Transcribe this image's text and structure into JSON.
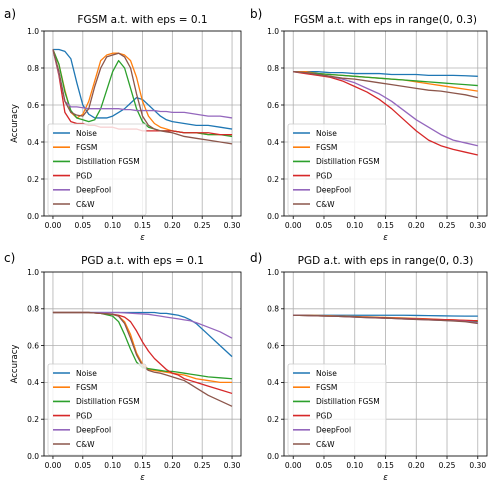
{
  "colors": {
    "Noise": "#1f77b4",
    "FGSM": "#ff7f0e",
    "Distillation FGSM": "#2ca02c",
    "PGD": "#d62728",
    "DeepFool": "#9467bd",
    "C&W": "#8c564b",
    "grid": "#b0b0b0"
  },
  "chart_data": [
    {
      "panel": "a)",
      "type": "line",
      "title": "FGSM a.t. with eps = 0.1",
      "xlabel": "ε",
      "ylabel": "Accuracy",
      "xlim": [
        -0.015,
        0.315
      ],
      "ylim": [
        0.0,
        1.0
      ],
      "xticks": [
        "0.00",
        "0.05",
        "0.10",
        "0.15",
        "0.20",
        "0.25",
        "0.30"
      ],
      "yticks": [
        "0.0",
        "0.2",
        "0.4",
        "0.6",
        "0.8",
        "1.0"
      ],
      "grid": true,
      "legend_position": "lower left",
      "x": [
        0.0,
        0.01,
        0.02,
        0.03,
        0.04,
        0.05,
        0.06,
        0.07,
        0.08,
        0.09,
        0.1,
        0.11,
        0.12,
        0.13,
        0.14,
        0.15,
        0.16,
        0.17,
        0.18,
        0.19,
        0.2,
        0.22,
        0.24,
        0.26,
        0.28,
        0.3
      ],
      "series": [
        {
          "name": "Noise",
          "values": [
            0.9,
            0.9,
            0.89,
            0.85,
            0.72,
            0.6,
            0.55,
            0.53,
            0.53,
            0.53,
            0.54,
            0.56,
            0.58,
            0.61,
            0.64,
            0.63,
            0.6,
            0.57,
            0.54,
            0.52,
            0.51,
            0.5,
            0.49,
            0.49,
            0.48,
            0.47
          ]
        },
        {
          "name": "FGSM",
          "values": [
            0.9,
            0.82,
            0.68,
            0.56,
            0.53,
            0.55,
            0.62,
            0.73,
            0.84,
            0.87,
            0.88,
            0.88,
            0.87,
            0.84,
            0.75,
            0.62,
            0.54,
            0.5,
            0.48,
            0.47,
            0.46,
            0.45,
            0.45,
            0.44,
            0.44,
            0.44
          ]
        },
        {
          "name": "Distillation FGSM",
          "values": [
            0.9,
            0.82,
            0.67,
            0.57,
            0.53,
            0.52,
            0.51,
            0.52,
            0.58,
            0.68,
            0.78,
            0.84,
            0.8,
            0.69,
            0.58,
            0.51,
            0.48,
            0.47,
            0.46,
            0.46,
            0.46,
            0.45,
            0.45,
            0.44,
            0.44,
            0.43
          ]
        },
        {
          "name": "PGD",
          "values": [
            0.9,
            0.76,
            0.56,
            0.51,
            0.5,
            0.5,
            0.49,
            0.49,
            0.48,
            0.48,
            0.48,
            0.47,
            0.47,
            0.47,
            0.47,
            0.46,
            0.46,
            0.46,
            0.46,
            0.46,
            0.46,
            0.45,
            0.45,
            0.45,
            0.44,
            0.44
          ]
        },
        {
          "name": "DeepFool",
          "values": [
            0.9,
            0.77,
            0.62,
            0.59,
            0.59,
            0.585,
            0.58,
            0.58,
            0.58,
            0.58,
            0.58,
            0.58,
            0.575,
            0.575,
            0.57,
            0.57,
            0.57,
            0.57,
            0.565,
            0.565,
            0.56,
            0.56,
            0.55,
            0.54,
            0.54,
            0.53
          ]
        },
        {
          "name": "C&W",
          "values": [
            0.9,
            0.78,
            0.62,
            0.56,
            0.545,
            0.54,
            0.58,
            0.7,
            0.8,
            0.86,
            0.87,
            0.88,
            0.86,
            0.8,
            0.66,
            0.54,
            0.49,
            0.47,
            0.46,
            0.455,
            0.45,
            0.43,
            0.42,
            0.41,
            0.4,
            0.39
          ]
        }
      ]
    },
    {
      "panel": "b)",
      "type": "line",
      "title": "FGSM a.t. with eps in range(0, 0.3)",
      "xlabel": "ε",
      "ylabel": "",
      "xlim": [
        -0.015,
        0.315
      ],
      "ylim": [
        0.0,
        1.0
      ],
      "xticks": [
        "0.00",
        "0.05",
        "0.10",
        "0.15",
        "0.20",
        "0.25",
        "0.30"
      ],
      "yticks": [
        "0.0",
        "0.2",
        "0.4",
        "0.6",
        "0.8",
        "1.0"
      ],
      "grid": true,
      "legend_position": "lower left",
      "x": [
        0.0,
        0.02,
        0.04,
        0.06,
        0.08,
        0.1,
        0.12,
        0.14,
        0.16,
        0.18,
        0.2,
        0.22,
        0.24,
        0.26,
        0.28,
        0.3
      ],
      "series": [
        {
          "name": "Noise",
          "values": [
            0.78,
            0.78,
            0.78,
            0.775,
            0.775,
            0.77,
            0.77,
            0.77,
            0.765,
            0.765,
            0.765,
            0.76,
            0.76,
            0.76,
            0.758,
            0.755
          ]
        },
        {
          "name": "FGSM",
          "values": [
            0.78,
            0.78,
            0.77,
            0.765,
            0.76,
            0.755,
            0.75,
            0.745,
            0.74,
            0.735,
            0.725,
            0.715,
            0.705,
            0.695,
            0.685,
            0.675
          ]
        },
        {
          "name": "Distillation FGSM",
          "values": [
            0.78,
            0.775,
            0.77,
            0.765,
            0.76,
            0.755,
            0.75,
            0.745,
            0.74,
            0.735,
            0.73,
            0.725,
            0.72,
            0.715,
            0.71,
            0.705
          ]
        },
        {
          "name": "PGD",
          "values": [
            0.78,
            0.77,
            0.76,
            0.75,
            0.73,
            0.7,
            0.67,
            0.63,
            0.58,
            0.52,
            0.46,
            0.41,
            0.38,
            0.36,
            0.345,
            0.33
          ]
        },
        {
          "name": "DeepFool",
          "values": [
            0.78,
            0.775,
            0.765,
            0.755,
            0.74,
            0.72,
            0.69,
            0.66,
            0.62,
            0.57,
            0.52,
            0.48,
            0.44,
            0.41,
            0.395,
            0.38
          ]
        },
        {
          "name": "C&W",
          "values": [
            0.78,
            0.775,
            0.765,
            0.755,
            0.745,
            0.74,
            0.73,
            0.72,
            0.71,
            0.7,
            0.69,
            0.68,
            0.675,
            0.665,
            0.655,
            0.64
          ]
        }
      ]
    },
    {
      "panel": "c)",
      "type": "line",
      "title": "PGD a.t. with eps = 0.1",
      "xlabel": "ε",
      "ylabel": "Accuracy",
      "xlim": [
        -0.015,
        0.315
      ],
      "ylim": [
        0.0,
        1.0
      ],
      "xticks": [
        "0.00",
        "0.05",
        "0.10",
        "0.15",
        "0.20",
        "0.25",
        "0.30"
      ],
      "yticks": [
        "0.0",
        "0.2",
        "0.4",
        "0.6",
        "0.8",
        "1.0"
      ],
      "grid": true,
      "legend_position": "lower left",
      "x": [
        0.0,
        0.02,
        0.04,
        0.06,
        0.08,
        0.1,
        0.11,
        0.12,
        0.13,
        0.14,
        0.15,
        0.16,
        0.17,
        0.18,
        0.19,
        0.2,
        0.21,
        0.22,
        0.23,
        0.24,
        0.26,
        0.28,
        0.3
      ],
      "series": [
        {
          "name": "Noise",
          "values": [
            0.78,
            0.78,
            0.78,
            0.78,
            0.78,
            0.78,
            0.78,
            0.78,
            0.78,
            0.78,
            0.78,
            0.78,
            0.78,
            0.775,
            0.775,
            0.77,
            0.765,
            0.755,
            0.74,
            0.72,
            0.66,
            0.6,
            0.54
          ]
        },
        {
          "name": "FGSM",
          "values": [
            0.78,
            0.78,
            0.78,
            0.78,
            0.775,
            0.77,
            0.76,
            0.73,
            0.66,
            0.56,
            0.5,
            0.47,
            0.465,
            0.46,
            0.455,
            0.45,
            0.445,
            0.44,
            0.43,
            0.42,
            0.41,
            0.4,
            0.4
          ]
        },
        {
          "name": "Distillation FGSM",
          "values": [
            0.78,
            0.78,
            0.78,
            0.78,
            0.775,
            0.76,
            0.73,
            0.66,
            0.58,
            0.51,
            0.48,
            0.475,
            0.47,
            0.465,
            0.46,
            0.46,
            0.455,
            0.45,
            0.445,
            0.44,
            0.43,
            0.425,
            0.42
          ]
        },
        {
          "name": "PGD",
          "values": [
            0.78,
            0.78,
            0.78,
            0.78,
            0.775,
            0.77,
            0.765,
            0.755,
            0.73,
            0.68,
            0.62,
            0.57,
            0.53,
            0.5,
            0.47,
            0.45,
            0.44,
            0.42,
            0.41,
            0.4,
            0.38,
            0.36,
            0.34
          ]
        },
        {
          "name": "DeepFool",
          "values": [
            0.78,
            0.78,
            0.78,
            0.78,
            0.78,
            0.78,
            0.78,
            0.778,
            0.776,
            0.774,
            0.772,
            0.77,
            0.765,
            0.76,
            0.755,
            0.75,
            0.745,
            0.74,
            0.735,
            0.725,
            0.7,
            0.675,
            0.64
          ]
        },
        {
          "name": "C&W",
          "values": [
            0.78,
            0.78,
            0.78,
            0.78,
            0.775,
            0.77,
            0.76,
            0.72,
            0.64,
            0.55,
            0.49,
            0.465,
            0.455,
            0.45,
            0.44,
            0.43,
            0.42,
            0.41,
            0.39,
            0.37,
            0.33,
            0.3,
            0.27
          ]
        }
      ]
    },
    {
      "panel": "d)",
      "type": "line",
      "title": "PGD a.t. with eps in range(0, 0.3)",
      "xlabel": "ε",
      "ylabel": "",
      "xlim": [
        -0.015,
        0.315
      ],
      "ylim": [
        0.0,
        1.0
      ],
      "xticks": [
        "0.00",
        "0.05",
        "0.10",
        "0.15",
        "0.20",
        "0.25",
        "0.30"
      ],
      "yticks": [
        "0.0",
        "0.2",
        "0.4",
        "0.6",
        "0.8",
        "1.0"
      ],
      "grid": true,
      "legend_position": "lower left",
      "x": [
        0.0,
        0.02,
        0.04,
        0.06,
        0.08,
        0.1,
        0.12,
        0.14,
        0.16,
        0.18,
        0.2,
        0.22,
        0.24,
        0.26,
        0.28,
        0.3
      ],
      "series": [
        {
          "name": "Noise",
          "values": [
            0.765,
            0.765,
            0.765,
            0.765,
            0.765,
            0.765,
            0.765,
            0.765,
            0.765,
            0.765,
            0.764,
            0.763,
            0.762,
            0.761,
            0.76,
            0.76
          ]
        },
        {
          "name": "FGSM",
          "values": [
            0.765,
            0.765,
            0.764,
            0.762,
            0.76,
            0.758,
            0.756,
            0.754,
            0.752,
            0.75,
            0.748,
            0.745,
            0.742,
            0.74,
            0.737,
            0.735
          ]
        },
        {
          "name": "Distillation FGSM",
          "values": [
            0.765,
            0.764,
            0.762,
            0.76,
            0.758,
            0.756,
            0.754,
            0.752,
            0.75,
            0.748,
            0.745,
            0.742,
            0.74,
            0.737,
            0.735,
            0.73
          ]
        },
        {
          "name": "PGD",
          "values": [
            0.765,
            0.764,
            0.762,
            0.76,
            0.758,
            0.756,
            0.754,
            0.752,
            0.75,
            0.748,
            0.746,
            0.744,
            0.742,
            0.74,
            0.737,
            0.735
          ]
        },
        {
          "name": "DeepFool",
          "values": [
            0.765,
            0.764,
            0.762,
            0.76,
            0.758,
            0.755,
            0.752,
            0.75,
            0.748,
            0.745,
            0.743,
            0.74,
            0.737,
            0.735,
            0.732,
            0.725
          ]
        },
        {
          "name": "C&W",
          "values": [
            0.765,
            0.764,
            0.762,
            0.76,
            0.758,
            0.755,
            0.752,
            0.75,
            0.748,
            0.745,
            0.742,
            0.74,
            0.737,
            0.734,
            0.73,
            0.72
          ]
        }
      ]
    }
  ]
}
